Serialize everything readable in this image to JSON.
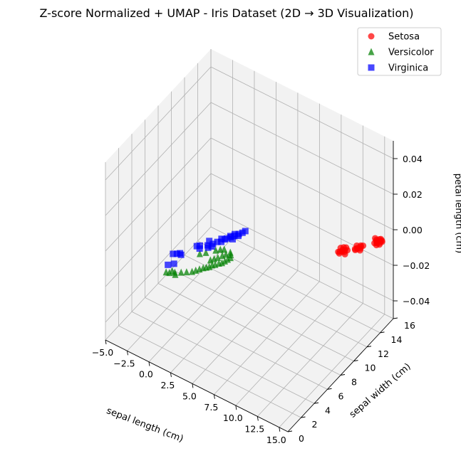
{
  "chart_data": {
    "type": "scatter",
    "title": "Z-score Normalized + UMAP - Iris Dataset (2D → 3D Visualization)",
    "xlabel": "sepal length (cm)",
    "ylabel": "sepal width (cm)",
    "zlabel": "petal length (cm)",
    "xlim": [
      -5.0,
      16.0
    ],
    "ylim": [
      0,
      16
    ],
    "zlim": [
      -0.05,
      0.05
    ],
    "xticks": [
      "−5.0",
      "−2.5",
      "0.0",
      "2.5",
      "5.0",
      "7.5",
      "10.0",
      "12.5",
      "15.0"
    ],
    "yticks": [
      "0",
      "2",
      "4",
      "6",
      "8",
      "10",
      "12",
      "14",
      "16"
    ],
    "zticks": [
      "−0.04",
      "−0.02",
      "0.00",
      "0.02",
      "0.04"
    ],
    "grid": true,
    "legend_position": "top-right",
    "series": [
      {
        "name": "Setosa",
        "color": "#ff0000",
        "marker": "circle",
        "points": [
          [
            13.5,
            11.6,
            0
          ],
          [
            13.6,
            11.4,
            0
          ],
          [
            13.4,
            11.9,
            0
          ],
          [
            13.7,
            11.7,
            0
          ],
          [
            13.3,
            11.2,
            0
          ],
          [
            13.8,
            11.5,
            0
          ],
          [
            13.5,
            11.1,
            0
          ],
          [
            13.9,
            11.8,
            0
          ],
          [
            13.2,
            11.7,
            0
          ],
          [
            13.6,
            12.0,
            0
          ],
          [
            14.0,
            11.3,
            0
          ],
          [
            13.4,
            11.3,
            0
          ],
          [
            14.5,
            12.5,
            0
          ],
          [
            14.7,
            12.8,
            0
          ],
          [
            14.4,
            12.3,
            0
          ],
          [
            14.8,
            12.6,
            0
          ],
          [
            14.6,
            12.9,
            0
          ],
          [
            14.9,
            12.4,
            0
          ],
          [
            14.3,
            12.7,
            0
          ],
          [
            14.5,
            12.2,
            0
          ],
          [
            14.8,
            13.0,
            0
          ],
          [
            14.6,
            12.4,
            0
          ],
          [
            15.6,
            14.0,
            0
          ],
          [
            15.8,
            14.3,
            0
          ],
          [
            15.5,
            13.8,
            0
          ],
          [
            15.9,
            14.1,
            0
          ],
          [
            15.7,
            14.5,
            0
          ],
          [
            16.0,
            13.9,
            0
          ],
          [
            15.4,
            14.2,
            0
          ],
          [
            15.8,
            13.7,
            0
          ],
          [
            15.6,
            14.4,
            0
          ],
          [
            15.9,
            14.4,
            0
          ],
          [
            15.5,
            14.1,
            0
          ],
          [
            15.2,
            14.3,
            0
          ],
          [
            15.7,
            13.9,
            0
          ],
          [
            16.0,
            14.3,
            0
          ]
        ]
      },
      {
        "name": "Versicolor",
        "color": "#008000",
        "marker": "triangle",
        "points": [
          [
            1.3,
            0.9,
            0
          ],
          [
            1.6,
            1.0,
            0
          ],
          [
            2.0,
            1.3,
            0
          ],
          [
            2.5,
            1.6,
            0
          ],
          [
            2.9,
            1.9,
            0
          ],
          [
            3.3,
            2.2,
            0
          ],
          [
            3.5,
            2.5,
            0
          ],
          [
            3.7,
            2.8,
            0
          ],
          [
            3.9,
            3.1,
            0
          ],
          [
            4.1,
            3.3,
            0
          ],
          [
            4.3,
            3.5,
            0
          ],
          [
            4.4,
            3.8,
            0
          ],
          [
            4.6,
            4.0,
            0
          ],
          [
            4.8,
            4.3,
            0
          ],
          [
            5.0,
            4.5,
            0
          ],
          [
            5.1,
            4.8,
            0
          ],
          [
            5.2,
            5.1,
            0
          ],
          [
            5.3,
            5.4,
            0
          ],
          [
            5.1,
            5.7,
            0
          ],
          [
            4.9,
            5.9,
            0
          ],
          [
            3.9,
            4.2,
            0
          ],
          [
            4.1,
            4.5,
            0
          ],
          [
            4.3,
            4.8,
            0
          ],
          [
            4.5,
            5.2,
            0
          ],
          [
            4.7,
            5.5,
            0
          ],
          [
            4.2,
            5.9,
            0
          ],
          [
            3.9,
            5.7,
            0
          ],
          [
            3.6,
            5.4,
            0
          ],
          [
            3.0,
            4.7,
            0
          ],
          [
            2.6,
            4.3,
            0
          ],
          [
            1.7,
            1.3,
            0
          ],
          [
            2.2,
            1.1,
            0
          ]
        ]
      },
      {
        "name": "Virginica",
        "color": "#0000ff",
        "marker": "square",
        "points": [
          [
            0.5,
            3.0,
            0
          ],
          [
            0.8,
            3.2,
            0
          ],
          [
            1.0,
            3.4,
            0
          ],
          [
            1.2,
            3.3,
            0
          ],
          [
            1.8,
            4.9,
            0
          ],
          [
            2.0,
            5.1,
            0
          ],
          [
            2.2,
            4.8,
            0
          ],
          [
            2.6,
            5.5,
            0
          ],
          [
            2.9,
            5.9,
            0
          ],
          [
            3.0,
            5.6,
            0
          ],
          [
            3.1,
            6.3,
            0
          ],
          [
            3.4,
            6.5,
            0
          ],
          [
            3.6,
            7.1,
            0
          ],
          [
            3.8,
            7.4,
            0
          ],
          [
            4.0,
            7.7,
            0
          ],
          [
            4.2,
            8.1,
            0
          ],
          [
            4.4,
            8.4,
            0
          ],
          [
            4.1,
            7.3,
            0
          ],
          [
            3.9,
            7.9,
            0
          ],
          [
            4.5,
            8.7,
            0
          ],
          [
            3.7,
            7.5,
            0
          ],
          [
            3.2,
            6.8,
            0
          ],
          [
            2.4,
            6.0,
            0
          ],
          [
            0.9,
            1.7,
            0
          ],
          [
            1.3,
            2.1,
            0
          ],
          [
            2.8,
            5.3,
            0
          ],
          [
            4.3,
            7.9,
            0
          ],
          [
            3.5,
            6.9,
            0
          ]
        ]
      }
    ]
  }
}
